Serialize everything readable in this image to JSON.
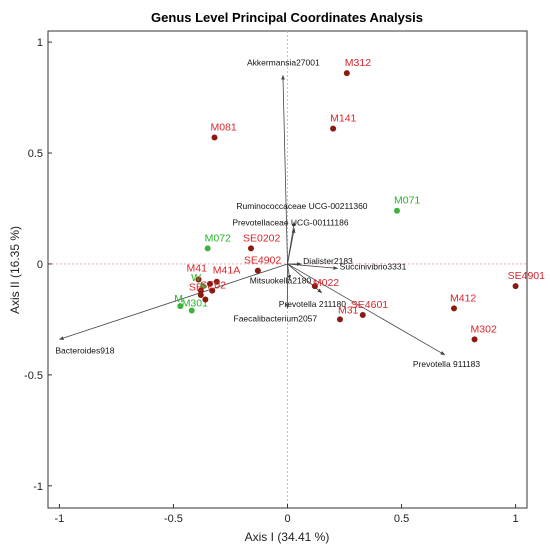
{
  "chart_data": {
    "type": "scatter",
    "title": "Genus Level Principal Coordinates Analysis",
    "xlabel": "Axis I (34.41 %)",
    "ylabel": "Axis II (16.35 %)",
    "xlim": [
      -1.05,
      1.05
    ],
    "ylim": [
      -1.1,
      1.05
    ],
    "xticks": [
      -1,
      -0.5,
      0,
      0.5,
      1
    ],
    "yticks": [
      -1,
      -0.5,
      0,
      0.5,
      1
    ],
    "xtick_labels": [
      "-1",
      "-0.5",
      "0",
      "0.5",
      "1"
    ],
    "ytick_labels": [
      "-1",
      "-0.5",
      "0",
      "0.5",
      "1"
    ],
    "colors": {
      "red_group": "#8b1a10",
      "red_label": "#d9262c",
      "green_group": "#3cb43c",
      "green_label": "#27b427",
      "vector": "#444444",
      "zero_line": "#e8a0a0"
    },
    "points": [
      {
        "label": "M312",
        "x": 0.26,
        "y": 0.86,
        "group": "red"
      },
      {
        "label": "M141",
        "x": 0.2,
        "y": 0.61,
        "group": "red"
      },
      {
        "label": "M081",
        "x": -0.32,
        "y": 0.57,
        "group": "red"
      },
      {
        "label": "M071",
        "x": 0.48,
        "y": 0.24,
        "group": "green"
      },
      {
        "label": "M072",
        "x": -0.35,
        "y": 0.07,
        "group": "green"
      },
      {
        "label": "SE0202",
        "x": -0.16,
        "y": 0.07,
        "group": "red"
      },
      {
        "label": "SE4902",
        "x": -0.13,
        "y": -0.03,
        "group": "red"
      },
      {
        "label": "M022",
        "x": 0.12,
        "y": -0.1,
        "group": "red"
      },
      {
        "label": "SE4901",
        "x": 1.0,
        "y": -0.1,
        "group": "red"
      },
      {
        "label": "M412",
        "x": 0.73,
        "y": -0.2,
        "group": "red"
      },
      {
        "label": "M31",
        "x": 0.23,
        "y": -0.25,
        "group": "red"
      },
      {
        "label": "SE4601",
        "x": 0.33,
        "y": -0.23,
        "group": "red"
      },
      {
        "label": "M302",
        "x": 0.82,
        "y": -0.34,
        "group": "red"
      },
      {
        "label": "M41",
        "x": -0.39,
        "y": -0.07,
        "group": "red"
      },
      {
        "label": "M41A",
        "x": -0.31,
        "y": -0.08,
        "group": "red"
      },
      {
        "label": "W",
        "x": -0.37,
        "y": -0.1,
        "group": "green"
      },
      {
        "label": "SE02",
        "x": -0.33,
        "y": -0.12,
        "group": "red"
      },
      {
        "label": "SE",
        "x": -0.38,
        "y": -0.12,
        "group": "red"
      },
      {
        "label": "M",
        "x": -0.47,
        "y": -0.19,
        "group": "green"
      },
      {
        "label": "M301",
        "x": -0.42,
        "y": -0.21,
        "group": "green"
      },
      {
        "label": "",
        "x": -0.38,
        "y": -0.14,
        "group": "red"
      },
      {
        "label": "",
        "x": -0.34,
        "y": -0.09,
        "group": "red"
      },
      {
        "label": "",
        "x": -0.36,
        "y": -0.16,
        "group": "red"
      }
    ],
    "vectors": [
      {
        "label": "Akkermansia27001",
        "x": -0.02,
        "y": 0.85
      },
      {
        "label": "Ruminococcaceae UCG-00211360",
        "x": 0.03,
        "y": 0.19
      },
      {
        "label": "Prevotellaceae UCG-00111186",
        "x": 0.03,
        "y": 0.16
      },
      {
        "label": "Dialister2183",
        "x": 0.06,
        "y": 0.0
      },
      {
        "label": "Succinivibrio3331",
        "x": 0.22,
        "y": -0.02
      },
      {
        "label": "Mitsuokella2180",
        "x": 0.01,
        "y": -0.07
      },
      {
        "label": "Prevotella 211180",
        "x": 0.15,
        "y": -0.13
      },
      {
        "label": "Faecalibacterium2057",
        "x": -0.0,
        "y": -0.2
      },
      {
        "label": "Bacteroides918",
        "x": -1.0,
        "y": -0.34
      },
      {
        "label": "Prevotella 911183",
        "x": 0.69,
        "y": -0.41
      }
    ]
  }
}
